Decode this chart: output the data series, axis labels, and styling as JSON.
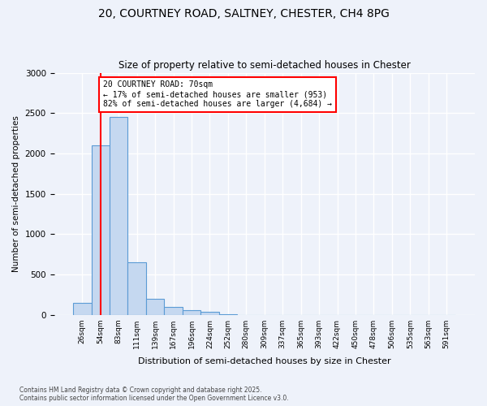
{
  "title1": "20, COURTNEY ROAD, SALTNEY, CHESTER, CH4 8PG",
  "title2": "Size of property relative to semi-detached houses in Chester",
  "xlabel": "Distribution of semi-detached houses by size in Chester",
  "ylabel": "Number of semi-detached properties",
  "bar_color": "#c5d8f0",
  "bar_edge_color": "#5b9bd5",
  "bins": [
    "26sqm",
    "54sqm",
    "83sqm",
    "111sqm",
    "139sqm",
    "167sqm",
    "196sqm",
    "224sqm",
    "252sqm",
    "280sqm",
    "309sqm",
    "337sqm",
    "365sqm",
    "393sqm",
    "422sqm",
    "450sqm",
    "478sqm",
    "506sqm",
    "535sqm",
    "563sqm",
    "591sqm"
  ],
  "values": [
    150,
    2100,
    2450,
    650,
    200,
    100,
    60,
    40,
    5,
    0,
    0,
    0,
    0,
    0,
    0,
    0,
    0,
    0,
    0,
    0,
    0
  ],
  "vline_x": 1.0,
  "annotation_title": "20 COURTNEY ROAD: 70sqm",
  "annotation_line1": "← 17% of semi-detached houses are smaller (953)",
  "annotation_line2": "82% of semi-detached houses are larger (4,684) →",
  "ylim": [
    0,
    3000
  ],
  "yticks": [
    0,
    500,
    1000,
    1500,
    2000,
    2500,
    3000
  ],
  "footer1": "Contains HM Land Registry data © Crown copyright and database right 2025.",
  "footer2": "Contains public sector information licensed under the Open Government Licence v3.0.",
  "background_color": "#eef2fa",
  "grid_color": "#ffffff"
}
